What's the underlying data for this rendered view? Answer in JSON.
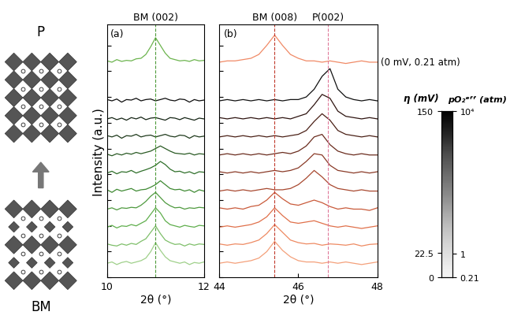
{
  "chart_data": [
    {
      "type": "line",
      "panel_label": "(a)",
      "x_label": "2θ (°)",
      "y_label": "Intensity (a.u.)",
      "x": [
        10.0,
        10.1,
        10.2,
        10.3,
        10.4,
        10.5,
        10.6,
        10.7,
        10.8,
        10.9,
        11.0,
        11.1,
        11.2,
        11.3,
        11.4,
        11.5,
        11.6,
        11.7,
        11.8,
        11.9,
        12.0
      ],
      "xlim": [
        10,
        12
      ],
      "xticks": [
        10,
        12
      ],
      "ylim": [
        0,
        9.8
      ],
      "yticks": [
        0,
        1,
        2,
        3,
        4,
        5,
        6,
        7,
        8,
        9
      ],
      "tick_labels": "x",
      "reference_lines": [
        {
          "x": 11.0,
          "label": "BM (002)",
          "color": "#4e9a3a"
        }
      ],
      "series": [
        {
          "color": "#9fd08a",
          "values": [
            0.55,
            0.6,
            0.5,
            0.58,
            0.62,
            0.55,
            0.6,
            0.65,
            0.75,
            1.0,
            1.35,
            1.05,
            0.8,
            0.65,
            0.6,
            0.55,
            0.6,
            0.5,
            0.58,
            0.55,
            0.6
          ]
        },
        {
          "color": "#7fbf6a",
          "values": [
            1.3,
            1.25,
            1.22,
            1.3,
            1.25,
            1.32,
            1.28,
            1.4,
            1.5,
            1.75,
            2.0,
            1.7,
            1.45,
            1.35,
            1.28,
            1.3,
            1.22,
            1.3,
            1.25,
            1.3,
            1.28
          ]
        },
        {
          "color": "#5fae4c",
          "values": [
            1.95,
            2.02,
            1.92,
            2.0,
            1.98,
            2.05,
            2.0,
            2.1,
            2.2,
            2.45,
            2.7,
            2.5,
            2.2,
            2.05,
            2.0,
            1.95,
            2.02,
            1.98,
            1.95,
            2.02,
            2.0
          ]
        },
        {
          "color": "#4f9a3f",
          "values": [
            2.65,
            2.7,
            2.62,
            2.7,
            2.68,
            2.72,
            2.7,
            2.8,
            2.95,
            3.15,
            3.3,
            3.1,
            2.9,
            2.78,
            2.7,
            2.72,
            2.65,
            2.7,
            2.68,
            2.72,
            2.7
          ]
        },
        {
          "color": "#3f8a33",
          "values": [
            3.4,
            3.3,
            3.42,
            3.35,
            3.4,
            3.45,
            3.35,
            3.4,
            3.42,
            3.5,
            3.6,
            3.75,
            3.6,
            3.45,
            3.4,
            3.42,
            3.35,
            3.4,
            3.3,
            3.4,
            3.35
          ]
        },
        {
          "color": "#2f6f2a",
          "values": [
            4.05,
            4.12,
            4.02,
            4.1,
            4.08,
            4.15,
            4.05,
            4.12,
            4.18,
            4.25,
            4.35,
            4.5,
            4.38,
            4.2,
            4.1,
            4.12,
            4.05,
            4.1,
            4.02,
            4.1,
            4.08
          ]
        },
        {
          "color": "#2a5a24",
          "values": [
            4.78,
            4.72,
            4.8,
            4.75,
            4.82,
            4.78,
            4.85,
            4.8,
            4.85,
            4.9,
            5.0,
            5.1,
            5.0,
            4.9,
            4.82,
            4.8,
            4.78,
            4.82,
            4.75,
            4.8,
            4.78
          ]
        },
        {
          "color": "#1f3a1c",
          "values": [
            5.5,
            5.45,
            5.52,
            5.4,
            5.5,
            5.48,
            5.55,
            5.45,
            5.5,
            5.52,
            5.45,
            5.5,
            5.55,
            5.48,
            5.45,
            5.52,
            5.5,
            5.4,
            5.5,
            5.45,
            5.48
          ]
        },
        {
          "color": "#152515",
          "values": [
            6.15,
            6.2,
            6.12,
            6.18,
            6.1,
            6.2,
            6.15,
            6.22,
            6.12,
            6.18,
            6.2,
            6.15,
            6.1,
            6.2,
            6.18,
            6.12,
            6.2,
            6.15,
            6.1,
            6.18,
            6.15
          ]
        },
        {
          "color": "#0d0d0d",
          "values": [
            6.9,
            6.85,
            6.92,
            6.8,
            6.9,
            6.88,
            6.95,
            6.85,
            6.9,
            6.92,
            6.85,
            6.9,
            6.95,
            6.88,
            6.85,
            6.92,
            6.9,
            6.8,
            6.9,
            6.85,
            6.88
          ]
        },
        {
          "color": "#6cb44e",
          "values": [
            8.4,
            8.35,
            8.45,
            8.38,
            8.42,
            8.4,
            8.48,
            8.5,
            8.65,
            8.95,
            9.3,
            9.0,
            8.7,
            8.5,
            8.45,
            8.4,
            8.42,
            8.38,
            8.45,
            8.4,
            8.42
          ]
        }
      ]
    },
    {
      "type": "line",
      "panel_label": "(b)",
      "x_label": "2θ (°)",
      "x": [
        44.0,
        44.2,
        44.4,
        44.6,
        44.8,
        45.0,
        45.2,
        45.4,
        45.6,
        45.8,
        46.0,
        46.2,
        46.4,
        46.6,
        46.8,
        47.0,
        47.2,
        47.4,
        47.6,
        47.8,
        48.0
      ],
      "xlim": [
        44,
        48
      ],
      "xticks": [
        44,
        46,
        48
      ],
      "ylim": [
        0,
        9.8
      ],
      "yticks": [
        0,
        1,
        2,
        3,
        4,
        5,
        6,
        7,
        8,
        9
      ],
      "tick_labels": "x",
      "reference_lines": [
        {
          "x": 45.4,
          "label": "BM (008)",
          "color": "#c0392b"
        },
        {
          "x": 46.75,
          "label": "P(002)",
          "color": "#e07a9a"
        }
      ],
      "series": [
        {
          "color": "#f4a07a",
          "values": [
            0.55,
            0.6,
            0.55,
            0.6,
            0.65,
            0.75,
            1.0,
            1.4,
            1.05,
            0.8,
            0.65,
            0.6,
            0.6,
            0.55,
            0.6,
            0.55,
            0.6,
            0.55,
            0.5,
            0.55,
            0.6
          ]
        },
        {
          "color": "#ee8a62",
          "values": [
            1.3,
            1.25,
            1.3,
            1.28,
            1.35,
            1.45,
            1.7,
            2.05,
            1.75,
            1.45,
            1.35,
            1.3,
            1.32,
            1.25,
            1.3,
            1.28,
            1.25,
            1.3,
            1.22,
            1.28,
            1.3
          ]
        },
        {
          "color": "#e0704a",
          "values": [
            1.95,
            2.0,
            1.95,
            2.0,
            2.05,
            2.15,
            2.35,
            2.7,
            2.4,
            2.15,
            2.1,
            2.15,
            2.2,
            2.1,
            2.0,
            1.95,
            2.0,
            1.95,
            1.9,
            1.95,
            2.0
          ]
        },
        {
          "color": "#c95a3a",
          "values": [
            2.7,
            2.65,
            2.7,
            2.65,
            2.75,
            2.8,
            3.0,
            3.3,
            3.05,
            2.85,
            2.8,
            2.9,
            3.0,
            2.9,
            2.75,
            2.65,
            2.7,
            2.65,
            2.65,
            2.6,
            2.7
          ]
        },
        {
          "color": "#a8482f",
          "values": [
            3.35,
            3.4,
            3.35,
            3.4,
            3.35,
            3.4,
            3.45,
            3.4,
            3.4,
            3.45,
            3.6,
            3.85,
            4.15,
            3.9,
            3.6,
            3.45,
            3.4,
            3.35,
            3.4,
            3.35,
            3.35
          ]
        },
        {
          "color": "#8a3a27",
          "values": [
            4.1,
            4.05,
            4.1,
            4.05,
            4.1,
            4.05,
            4.1,
            4.15,
            4.1,
            4.15,
            4.25,
            4.5,
            4.8,
            4.75,
            4.35,
            4.15,
            4.1,
            4.05,
            4.1,
            4.05,
            4.1
          ]
        },
        {
          "color": "#6a2c1e",
          "values": [
            4.75,
            4.8,
            4.75,
            4.8,
            4.75,
            4.8,
            4.75,
            4.8,
            4.85,
            4.8,
            4.9,
            5.1,
            5.45,
            5.55,
            5.15,
            4.9,
            4.8,
            4.75,
            4.8,
            4.75,
            4.75
          ]
        },
        {
          "color": "#4a2016",
          "values": [
            5.45,
            5.5,
            5.45,
            5.5,
            5.45,
            5.5,
            5.45,
            5.5,
            5.45,
            5.5,
            5.55,
            5.7,
            6.05,
            6.35,
            6.1,
            5.7,
            5.55,
            5.5,
            5.45,
            5.5,
            5.45
          ]
        },
        {
          "color": "#2e1410",
          "values": [
            6.2,
            6.15,
            6.2,
            6.15,
            6.2,
            6.15,
            6.2,
            6.15,
            6.2,
            6.15,
            6.25,
            6.35,
            6.7,
            7.1,
            6.95,
            6.45,
            6.25,
            6.2,
            6.15,
            6.2,
            6.15
          ]
        },
        {
          "color": "#111111",
          "values": [
            6.85,
            6.9,
            6.85,
            6.9,
            6.85,
            6.9,
            6.85,
            6.9,
            6.85,
            6.9,
            6.9,
            7.0,
            7.3,
            7.8,
            8.1,
            7.3,
            7.0,
            6.9,
            6.85,
            6.9,
            6.85
          ]
        },
        {
          "color": "#f08a66",
          "label": "(0 mV, 0.21 atm)",
          "values": [
            8.35,
            8.4,
            8.4,
            8.45,
            8.5,
            8.65,
            9.0,
            9.4,
            9.0,
            8.65,
            8.5,
            8.4,
            8.4,
            8.35,
            8.4,
            8.35,
            8.3,
            8.35,
            8.4,
            8.35,
            8.35
          ]
        }
      ]
    }
  ],
  "colorbar": {
    "eta_label": "η (mV)",
    "eta_lim": [
      0,
      150
    ],
    "eta_ticks": [
      0,
      22.5,
      150
    ],
    "po2_label": "pO₂ᵉᶠᶠ (atm)",
    "po2_lim": [
      0.21,
      10000
    ],
    "log": "y",
    "po2_ticks": [
      0.21,
      1,
      {
        "value": 10000,
        "label": "10⁴"
      }
    ]
  },
  "schematic": {
    "top_label": "P",
    "bottom_label": "BM"
  }
}
